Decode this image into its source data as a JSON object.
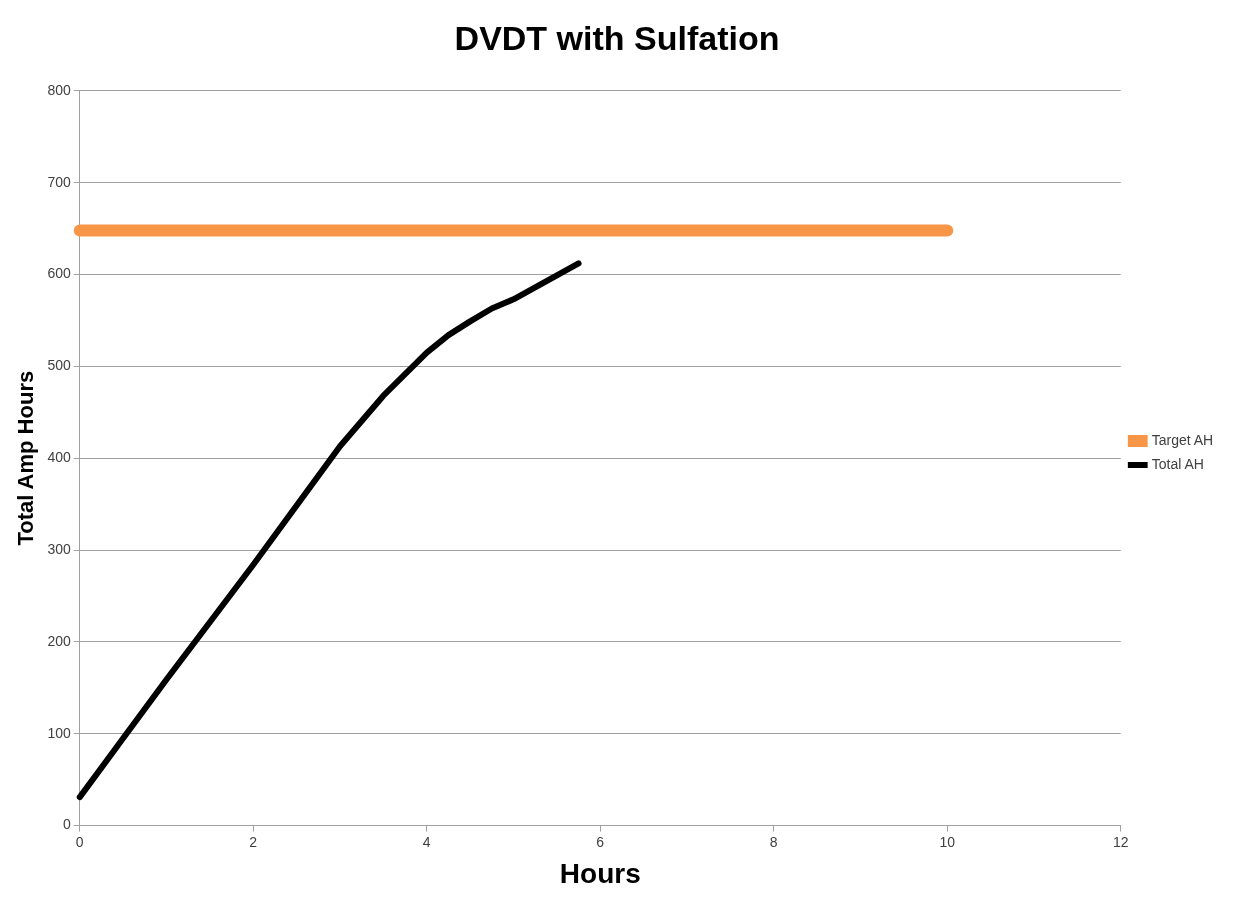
{
  "chart_data": {
    "type": "line",
    "title": "DVDT with Sulfation",
    "xlabel": "Hours",
    "ylabel": "Total Amp Hours",
    "xlim": [
      0,
      12
    ],
    "xticks": [
      0,
      2,
      4,
      6,
      8,
      10,
      12
    ],
    "ylim": [
      0,
      800
    ],
    "yticks": [
      0,
      100,
      200,
      300,
      400,
      500,
      600,
      700,
      800
    ],
    "grid": "y",
    "legend": "right",
    "marker": "none",
    "line_style": "solid",
    "series": [
      {
        "name": "Target AH",
        "color": "#f79646",
        "x": [
          0,
          10
        ],
        "values": [
          648,
          648
        ]
      },
      {
        "name": "Total AH",
        "color": "#000000",
        "x": [
          0,
          0.5,
          1,
          2,
          3,
          3.5,
          4,
          4.25,
          4.5,
          4.75,
          5,
          5.75
        ],
        "values": [
          31,
          95,
          159,
          284,
          413,
          468,
          515,
          534,
          549,
          563,
          573,
          612
        ]
      }
    ]
  }
}
